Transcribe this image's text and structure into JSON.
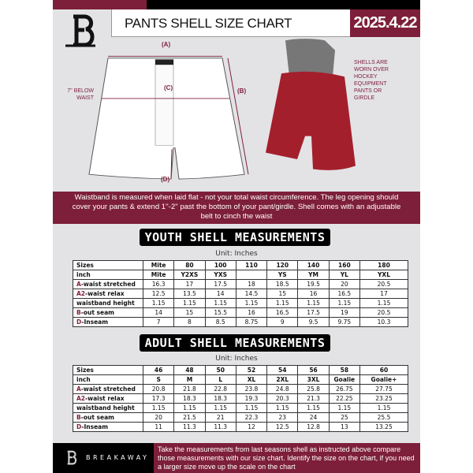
{
  "header": {
    "title": "PANTS SHELL SIZE CHART",
    "date": "2025.4.22"
  },
  "diagram": {
    "label_a": "(A)",
    "label_b": "(B)",
    "label_c": "(C)",
    "label_d": "(D)",
    "below_waist": "7'' BELOW WAIST",
    "worn_note": "SHELLS ARE WORN OVER HOCKEY EQUIPMENT PANTS OR GIRDLE"
  },
  "banner": "Waistband is measured when laid flat - not your total waist circumference. The leg opening should cover your pants & extend 1''-2'' past the bottom of your pant/girdle. Shell comes with an adjustable belt to cinch the waist",
  "youth": {
    "heading": "YOUTH SHELL MEASUREMENTS",
    "unit": "Unit: Inches",
    "rows": [
      {
        "k": "",
        "label": "Sizes",
        "cells": [
          "Mite",
          "80",
          "100",
          "110",
          "120",
          "140",
          "160",
          "180"
        ]
      },
      {
        "k": "",
        "label": "inch",
        "cells": [
          "Mite",
          "Y2XS",
          "YXS",
          "",
          "YS",
          "YM",
          "YL",
          "YXL"
        ]
      },
      {
        "k": "A",
        "label": "-waist stretched",
        "cells": [
          "16.3",
          "17",
          "17.5",
          "18",
          "18.5",
          "19.5",
          "20",
          "20.5"
        ]
      },
      {
        "k": "A2",
        "label": "-waist relax",
        "cells": [
          "12.5",
          "13.5",
          "14",
          "14.5",
          "15",
          "16",
          "16.5",
          "17"
        ]
      },
      {
        "k": "",
        "label": "waistband height",
        "cells": [
          "1.15",
          "1.15",
          "1.15",
          "1.15",
          "1.15",
          "1.15",
          "1.15",
          "1.15"
        ]
      },
      {
        "k": "B",
        "label": "-out seam",
        "cells": [
          "14",
          "15",
          "15.5",
          "16",
          "16.5",
          "17.5",
          "19",
          "20.5"
        ]
      },
      {
        "k": "D",
        "label": "-Inseam",
        "cells": [
          "7",
          "8",
          "8.5",
          "8.75",
          "9",
          "9.5",
          "9.75",
          "10.3"
        ]
      }
    ]
  },
  "adult": {
    "heading": "ADULT SHELL MEASUREMENTS",
    "unit": "Unit: Inches",
    "rows": [
      {
        "k": "",
        "label": "Sizes",
        "cells": [
          "46",
          "48",
          "50",
          "52",
          "54",
          "56",
          "58",
          "60"
        ]
      },
      {
        "k": "",
        "label": "inch",
        "cells": [
          "S",
          "M",
          "L",
          "XL",
          "2XL",
          "3XL",
          "Goalie",
          "Goalie+"
        ]
      },
      {
        "k": "A",
        "label": "-waist stretched",
        "cells": [
          "20.8",
          "21.8",
          "22.8",
          "23.8",
          "24.8",
          "25.8",
          "26.75",
          "27.75"
        ]
      },
      {
        "k": "A2",
        "label": "-waist relax",
        "cells": [
          "17.3",
          "18.3",
          "18.3",
          "19.3",
          "20.3",
          "21.3",
          "22.25",
          "23.25"
        ]
      },
      {
        "k": "",
        "label": "waistband height",
        "cells": [
          "1.15",
          "1.15",
          "1.15",
          "1.15",
          "1.15",
          "1.15",
          "1.15",
          "1.15"
        ]
      },
      {
        "k": "B",
        "label": "-out seam",
        "cells": [
          "20",
          "21.5",
          "21",
          "22.3",
          "23",
          "24",
          "25",
          "25.5"
        ]
      },
      {
        "k": "D",
        "label": "-Inseam",
        "cells": [
          "11",
          "11.3",
          "11.3",
          "12",
          "12.5",
          "12.8",
          "13",
          "13.25"
        ]
      }
    ]
  },
  "footer": {
    "brand": "BREAKAWAY",
    "note": "Take the measurements from last seasons shell as instructed above compare those measurements  with our size chart. Identify the size on the chart, if you need a larger size move up the scale on the chart"
  },
  "colors": {
    "accent": "#7d1f3a",
    "dark": "#000000",
    "background": "#e3e3e6"
  }
}
